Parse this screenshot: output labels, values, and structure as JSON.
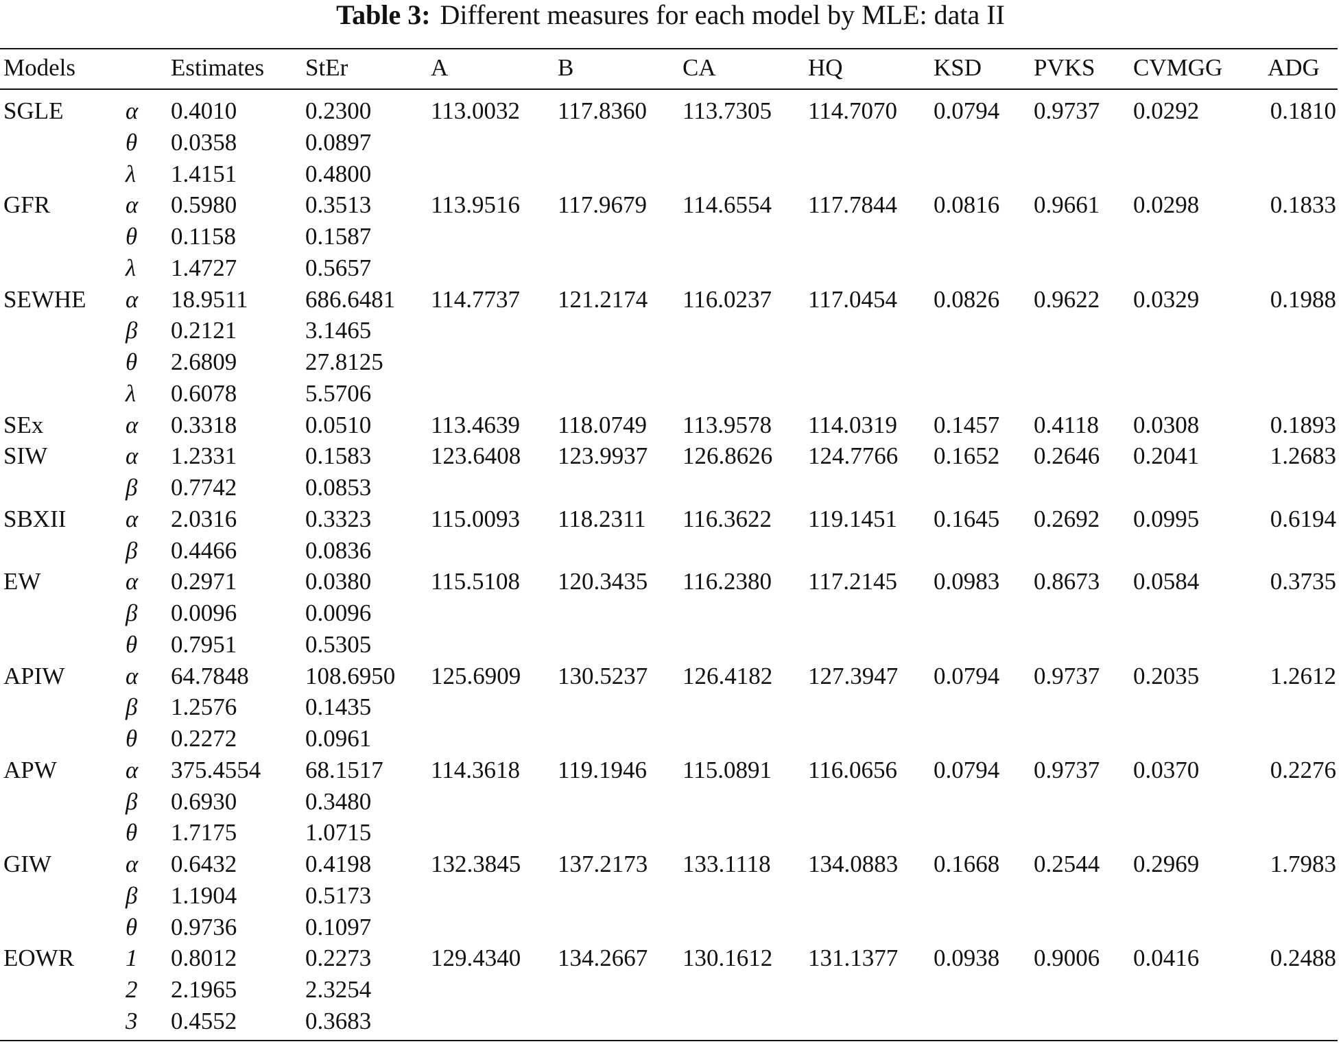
{
  "caption": {
    "label": "Table 3:",
    "text": "Different measures for each model by MLE: data II"
  },
  "table": {
    "columns": [
      "Models",
      "Estimates",
      "StEr",
      "A",
      "B",
      "CA",
      "HQ",
      "KSD",
      "PVKS",
      "CVMGG",
      "ADG"
    ],
    "rows": [
      {
        "model": "SGLE",
        "params": [
          [
            "α",
            "0.4010",
            "0.2300"
          ],
          [
            "θ",
            "0.0358",
            "0.0897"
          ],
          [
            "λ",
            "1.4151",
            "0.4800"
          ]
        ],
        "measures": [
          "113.0032",
          "117.8360",
          "113.7305",
          "114.7070",
          "0.0794",
          "0.9737",
          "0.0292",
          "0.1810"
        ]
      },
      {
        "model": "GFR",
        "params": [
          [
            "α",
            "0.5980",
            "0.3513"
          ],
          [
            "θ",
            "0.1158",
            "0.1587"
          ],
          [
            "λ",
            "1.4727",
            "0.5657"
          ]
        ],
        "measures": [
          "113.9516",
          "117.9679",
          "114.6554",
          "117.7844",
          "0.0816",
          "0.9661",
          "0.0298",
          "0.1833"
        ]
      },
      {
        "model": "SEWHE",
        "params": [
          [
            "α",
            "18.9511",
            "686.6481"
          ],
          [
            "β",
            "0.2121",
            "3.1465"
          ],
          [
            "θ",
            "2.6809",
            "27.8125"
          ],
          [
            "λ",
            "0.6078",
            "5.5706"
          ]
        ],
        "measures": [
          "114.7737",
          "121.2174",
          "116.0237",
          "117.0454",
          "0.0826",
          "0.9622",
          "0.0329",
          "0.1988"
        ]
      },
      {
        "model": "SEx",
        "params": [
          [
            "α",
            "0.3318",
            "0.0510"
          ]
        ],
        "measures": [
          "113.4639",
          "118.0749",
          "113.9578",
          "114.0319",
          "0.1457",
          "0.4118",
          "0.0308",
          "0.1893"
        ]
      },
      {
        "model": "SIW",
        "params": [
          [
            "α",
            "1.2331",
            "0.1583"
          ],
          [
            "β",
            "0.7742",
            "0.0853"
          ]
        ],
        "measures": [
          "123.6408",
          "123.9937",
          "126.8626",
          "124.7766",
          "0.1652",
          "0.2646",
          "0.2041",
          "1.2683"
        ]
      },
      {
        "model": "SBXII",
        "params": [
          [
            "α",
            "2.0316",
            "0.3323"
          ],
          [
            "β",
            "0.4466",
            "0.0836"
          ]
        ],
        "measures": [
          "115.0093",
          "118.2311",
          "116.3622",
          "119.1451",
          "0.1645",
          "0.2692",
          "0.0995",
          "0.6194"
        ]
      },
      {
        "model": "EW",
        "params": [
          [
            "α",
            "0.2971",
            "0.0380"
          ],
          [
            "β",
            "0.0096",
            "0.0096"
          ],
          [
            "θ",
            "0.7951",
            "0.5305"
          ]
        ],
        "measures": [
          "115.5108",
          "120.3435",
          "116.2380",
          "117.2145",
          "0.0983",
          "0.8673",
          "0.0584",
          "0.3735"
        ]
      },
      {
        "model": "APIW",
        "params": [
          [
            "α",
            "64.7848",
            "108.6950"
          ],
          [
            "β",
            "1.2576",
            "0.1435"
          ],
          [
            "θ",
            "0.2272",
            "0.0961"
          ]
        ],
        "measures": [
          "125.6909",
          "130.5237",
          "126.4182",
          "127.3947",
          "0.0794",
          "0.9737",
          "0.2035",
          "1.2612"
        ]
      },
      {
        "model": "APW",
        "params": [
          [
            "α",
            "375.4554",
            "68.1517"
          ],
          [
            "β",
            "0.6930",
            "0.3480"
          ],
          [
            "θ",
            "1.7175",
            "1.0715"
          ]
        ],
        "measures": [
          "114.3618",
          "119.1946",
          "115.0891",
          "116.0656",
          "0.0794",
          "0.9737",
          "0.0370",
          "0.2276"
        ]
      },
      {
        "model": "GIW",
        "params": [
          [
            "α",
            "0.6432",
            "0.4198"
          ],
          [
            "β",
            "1.1904",
            "0.5173"
          ],
          [
            "θ",
            "0.9736",
            "0.1097"
          ]
        ],
        "measures": [
          "132.3845",
          "137.2173",
          "133.1118",
          "134.0883",
          "0.1668",
          "0.2544",
          "0.2969",
          "1.7983"
        ]
      },
      {
        "model": "EOWR",
        "params": [
          [
            "1",
            "0.8012",
            "0.2273"
          ],
          [
            "2",
            "2.1965",
            "2.3254"
          ],
          [
            "3",
            "0.4552",
            "0.3683"
          ]
        ],
        "measures": [
          "129.4340",
          "134.2667",
          "130.1612",
          "131.1377",
          "0.0938",
          "0.9006",
          "0.0416",
          "0.2488"
        ]
      }
    ]
  }
}
